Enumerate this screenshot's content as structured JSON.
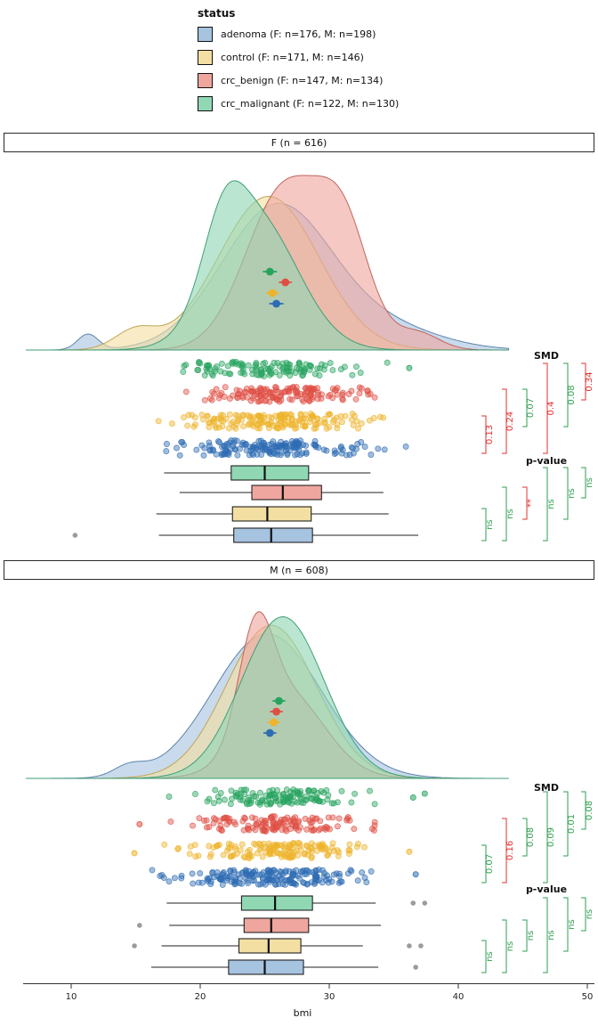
{
  "legend": {
    "title": "status",
    "items": [
      {
        "key": "adenoma",
        "label": "adenoma (F: n=176, M: n=198)"
      },
      {
        "key": "control",
        "label": "control (F: n=171, M: n=146)"
      },
      {
        "key": "crc_benign",
        "label": "crc_benign (F: n=147, M: n=134)"
      },
      {
        "key": "crc_malignant",
        "label": "crc_malignant (F: n=122, M: n=130)"
      }
    ]
  },
  "chart_data": {
    "type": "raincloud",
    "xlabel": "bmi",
    "x_ticks": [
      10,
      20,
      30,
      40,
      50
    ],
    "x_range": [
      6.5,
      44
    ],
    "annotation_colors": {
      "significant": "#e03131",
      "not_significant": "#2f9e50"
    },
    "groups": [
      {
        "key": "crc_malignant",
        "fill": "#90d7b4",
        "stroke": "#3f9e76",
        "point": "#27a35f"
      },
      {
        "key": "crc_benign",
        "fill": "#efa69e",
        "stroke": "#c2645c",
        "point": "#df4f44"
      },
      {
        "key": "control",
        "fill": "#f3dfa2",
        "stroke": "#c0a455",
        "point": "#eeb32a"
      },
      {
        "key": "adenoma",
        "fill": "#a6c3e0",
        "stroke": "#5d84ab",
        "point": "#2e6cb3"
      }
    ],
    "panels": [
      {
        "title": "F (n = 616)",
        "groups": [
          {
            "key": "crc_malignant",
            "mean": {
              "value": 25.4,
              "ci": 0.55
            },
            "density": {
              "peak": 0.97,
              "components": [
                {
                  "mu": 24.4,
                  "sd": 3.2,
                  "w": 1
                },
                {
                  "mu": 21.8,
                  "sd": 1.6,
                  "w": 0.25
                }
              ]
            },
            "jitter": {
              "n": 122,
              "mean": 25.2,
              "sd": 3.4,
              "min": 17,
              "max": 35,
              "extra": [
                36.2
              ]
            },
            "box": {
              "min": 17.2,
              "q1": 22.4,
              "med": 25.0,
              "q3": 28.4,
              "max": 33.2,
              "outliers": []
            }
          },
          {
            "key": "crc_benign",
            "mean": {
              "value": 26.6,
              "ci": 0.5
            },
            "density": {
              "peak": 1.0,
              "components": [
                {
                  "mu": 26.6,
                  "sd": 3.0,
                  "w": 1
                },
                {
                  "mu": 31.2,
                  "sd": 2.0,
                  "w": 0.42
                },
                {
                  "mu": 36.8,
                  "sd": 1.7,
                  "w": 0.06
                }
              ]
            },
            "jitter": {
              "n": 147,
              "mean": 26.4,
              "sd": 3.4,
              "min": 18,
              "max": 35,
              "extra": []
            },
            "box": {
              "min": 18.4,
              "q1": 24.0,
              "med": 26.4,
              "q3": 29.4,
              "max": 34.2,
              "outliers": []
            }
          },
          {
            "key": "control",
            "mean": {
              "value": 25.6,
              "ci": 0.5
            },
            "density": {
              "peak": 0.88,
              "components": [
                {
                  "mu": 25.3,
                  "sd": 3.9,
                  "w": 1
                },
                {
                  "mu": 15.0,
                  "sd": 1.6,
                  "w": 0.05
                }
              ]
            },
            "jitter": {
              "n": 171,
              "mean": 25.4,
              "sd": 3.8,
              "min": 16.5,
              "max": 35,
              "extra": []
            },
            "box": {
              "min": 16.6,
              "q1": 22.5,
              "med": 25.2,
              "q3": 28.6,
              "max": 34.6,
              "outliers": []
            }
          },
          {
            "key": "adenoma",
            "mean": {
              "value": 25.9,
              "ci": 0.55
            },
            "density": {
              "peak": 0.84,
              "components": [
                {
                  "mu": 26.0,
                  "sd": 4.3,
                  "w": 1
                },
                {
                  "mu": 35.0,
                  "sd": 4.0,
                  "w": 0.12
                },
                {
                  "mu": 11.3,
                  "sd": 0.8,
                  "w": 0.02
                }
              ]
            },
            "jitter": {
              "n": 176,
              "mean": 25.7,
              "sd": 4.0,
              "min": 16.5,
              "max": 37,
              "extra": []
            },
            "box": {
              "min": 16.8,
              "q1": 22.6,
              "med": 25.5,
              "q3": 28.7,
              "max": 36.9,
              "outliers": [
                10.3
              ]
            }
          }
        ],
        "smd": {
          "label": "SMD",
          "comparisons": [
            {
              "pair": [
                2,
                3
              ],
              "value": "0.13",
              "significant": true
            },
            {
              "pair": [
                1,
                3
              ],
              "value": "0.24",
              "significant": true
            },
            {
              "pair": [
                1,
                2
              ],
              "value": "0.07",
              "significant": false
            },
            {
              "pair": [
                0,
                3
              ],
              "value": "0.4",
              "significant": true
            },
            {
              "pair": [
                0,
                2
              ],
              "value": "0.08",
              "significant": false
            },
            {
              "pair": [
                0,
                1
              ],
              "value": "0.34",
              "significant": true
            }
          ]
        },
        "pvalues": {
          "label": "p-value",
          "comparisons": [
            {
              "pair": [
                2,
                3
              ],
              "value": "ns",
              "significant": false
            },
            {
              "pair": [
                1,
                3
              ],
              "value": "ns",
              "significant": false
            },
            {
              "pair": [
                1,
                2
              ],
              "value": "**",
              "significant": true
            },
            {
              "pair": [
                0,
                3
              ],
              "value": "ns",
              "significant": false
            },
            {
              "pair": [
                0,
                2
              ],
              "value": "ns",
              "significant": false
            },
            {
              "pair": [
                0,
                1
              ],
              "value": "ns",
              "significant": false
            }
          ]
        }
      },
      {
        "title": "M (n = 608)",
        "groups": [
          {
            "key": "crc_malignant",
            "mean": {
              "value": 26.1,
              "ci": 0.5
            },
            "density": {
              "peak": 0.95,
              "components": [
                {
                  "mu": 26.4,
                  "sd": 3.2,
                  "w": 1
                }
              ]
            },
            "jitter": {
              "n": 130,
              "mean": 25.9,
              "sd": 3.3,
              "min": 17.5,
              "max": 34.5,
              "extra": [
                36.5,
                37.4
              ]
            },
            "box": {
              "min": 17.4,
              "q1": 23.2,
              "med": 25.8,
              "q3": 28.7,
              "max": 33.6,
              "outliers": [
                36.5,
                37.4
              ]
            }
          },
          {
            "key": "crc_benign",
            "mean": {
              "value": 25.9,
              "ci": 0.5
            },
            "density": {
              "peak": 0.98,
              "components": [
                {
                  "mu": 24.3,
                  "sd": 1.3,
                  "w": 0.5
                },
                {
                  "mu": 26.6,
                  "sd": 3.0,
                  "w": 1
                }
              ]
            },
            "jitter": {
              "n": 134,
              "mean": 25.5,
              "sd": 3.2,
              "min": 17.5,
              "max": 34,
              "extra": [
                15.3
              ]
            },
            "box": {
              "min": 17.6,
              "q1": 23.4,
              "med": 25.5,
              "q3": 28.4,
              "max": 34.0,
              "outliers": [
                15.3
              ]
            }
          },
          {
            "key": "control",
            "mean": {
              "value": 25.7,
              "ci": 0.5
            },
            "density": {
              "peak": 0.9,
              "components": [
                {
                  "mu": 25.5,
                  "sd": 3.5,
                  "w": 1
                }
              ]
            },
            "jitter": {
              "n": 146,
              "mean": 25.4,
              "sd": 3.4,
              "min": 17,
              "max": 33,
              "extra": [
                14.9,
                36.2
              ]
            },
            "box": {
              "min": 17.0,
              "q1": 23.0,
              "med": 25.3,
              "q3": 27.8,
              "max": 32.6,
              "outliers": [
                14.9,
                36.2,
                37.1
              ]
            }
          },
          {
            "key": "adenoma",
            "mean": {
              "value": 25.4,
              "ci": 0.5
            },
            "density": {
              "peak": 0.85,
              "components": [
                {
                  "mu": 25.2,
                  "sd": 4.2,
                  "w": 1
                },
                {
                  "mu": 14.5,
                  "sd": 1.2,
                  "w": 0.02
                }
              ]
            },
            "jitter": {
              "n": 198,
              "mean": 25.2,
              "sd": 3.9,
              "min": 16,
              "max": 34.5,
              "extra": [
                36.7
              ]
            },
            "box": {
              "min": 16.2,
              "q1": 22.2,
              "med": 25.0,
              "q3": 28.0,
              "max": 33.8,
              "outliers": [
                36.7
              ]
            }
          }
        ],
        "smd": {
          "label": "SMD",
          "comparisons": [
            {
              "pair": [
                2,
                3
              ],
              "value": "0.07",
              "significant": false
            },
            {
              "pair": [
                1,
                3
              ],
              "value": "0.16",
              "significant": true
            },
            {
              "pair": [
                1,
                2
              ],
              "value": "0.08",
              "significant": false
            },
            {
              "pair": [
                0,
                3
              ],
              "value": "0.09",
              "significant": false
            },
            {
              "pair": [
                0,
                2
              ],
              "value": "0.01",
              "significant": false
            },
            {
              "pair": [
                0,
                1
              ],
              "value": "0.08",
              "significant": false
            }
          ]
        },
        "pvalues": {
          "label": "p-value",
          "comparisons": [
            {
              "pair": [
                2,
                3
              ],
              "value": "ns",
              "significant": false
            },
            {
              "pair": [
                1,
                3
              ],
              "value": "ns",
              "significant": false
            },
            {
              "pair": [
                1,
                2
              ],
              "value": "ns",
              "significant": false
            },
            {
              "pair": [
                0,
                3
              ],
              "value": "ns",
              "significant": false
            },
            {
              "pair": [
                0,
                2
              ],
              "value": "ns",
              "significant": false
            },
            {
              "pair": [
                0,
                1
              ],
              "value": "ns",
              "significant": false
            }
          ]
        }
      }
    ]
  }
}
